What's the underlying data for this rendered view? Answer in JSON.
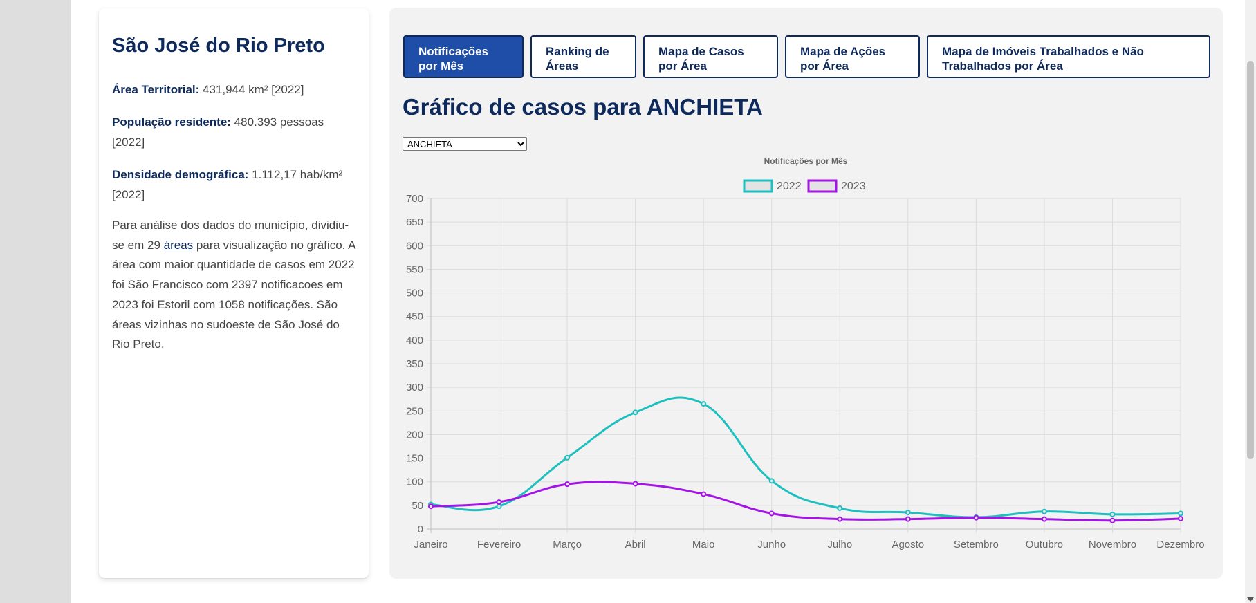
{
  "sidebar_info": {
    "city_title": "São José do Rio Preto",
    "area_label": "Área Territorial:",
    "area_value": " 431,944 km² [2022]",
    "population_label": "População residente:",
    "population_value": " 480.393 pessoas [2022]",
    "density_label": "Densidade demográfica:",
    "density_value": " 1.112,17 hab/km² [2022]",
    "desc_before_link": "Para análise dos dados do município, dividiu-se em 29 ",
    "desc_link": "áreas",
    "desc_after_link": " para visualização no gráfico. A área com maior quantidade de casos em 2022 foi São Francisco com 2397 notificacoes em 2023 foi Estoril com 1058 notificações. São áreas vizinhas no sudoeste de São José do Rio Preto."
  },
  "tabs": [
    {
      "label": "Notificações por Mês",
      "active": true
    },
    {
      "label": "Ranking de Áreas",
      "active": false
    },
    {
      "label": "Mapa de Casos por Área",
      "active": false
    },
    {
      "label": "Mapa de Ações por Área",
      "active": false
    },
    {
      "label": "Mapa de Imóveis Trabalhados e Não Trabalhados por Área",
      "active": false
    }
  ],
  "main": {
    "heading": "Gráfico de casos para ANCHIETA",
    "select_value": "ANCHIETA"
  },
  "colors": {
    "series_2022": "#1ebfbf",
    "series_2023": "#a414e6",
    "brand_navy": "#0e2a5c",
    "active_tab": "#1f4ea8"
  },
  "chart_data": {
    "type": "line",
    "title": "Notificações por Mês",
    "categories": [
      "Janeiro",
      "Fevereiro",
      "Março",
      "Abril",
      "Maio",
      "Junho",
      "Julho",
      "Agosto",
      "Setembro",
      "Outubro",
      "Novembro",
      "Dezembro"
    ],
    "series": [
      {
        "name": "2022",
        "values": [
          52,
          48,
          151,
          247,
          265,
          102,
          44,
          35,
          25,
          37,
          31,
          33
        ]
      },
      {
        "name": "2023",
        "values": [
          48,
          57,
          95,
          96,
          74,
          33,
          21,
          21,
          24,
          21,
          18,
          22
        ]
      }
    ],
    "ylim": [
      0,
      700
    ],
    "yticks": [
      0,
      50,
      100,
      150,
      200,
      250,
      300,
      350,
      400,
      450,
      500,
      550,
      600,
      650,
      700
    ],
    "grid": true,
    "legend_position": "top-center",
    "xlabel": "",
    "ylabel": ""
  }
}
